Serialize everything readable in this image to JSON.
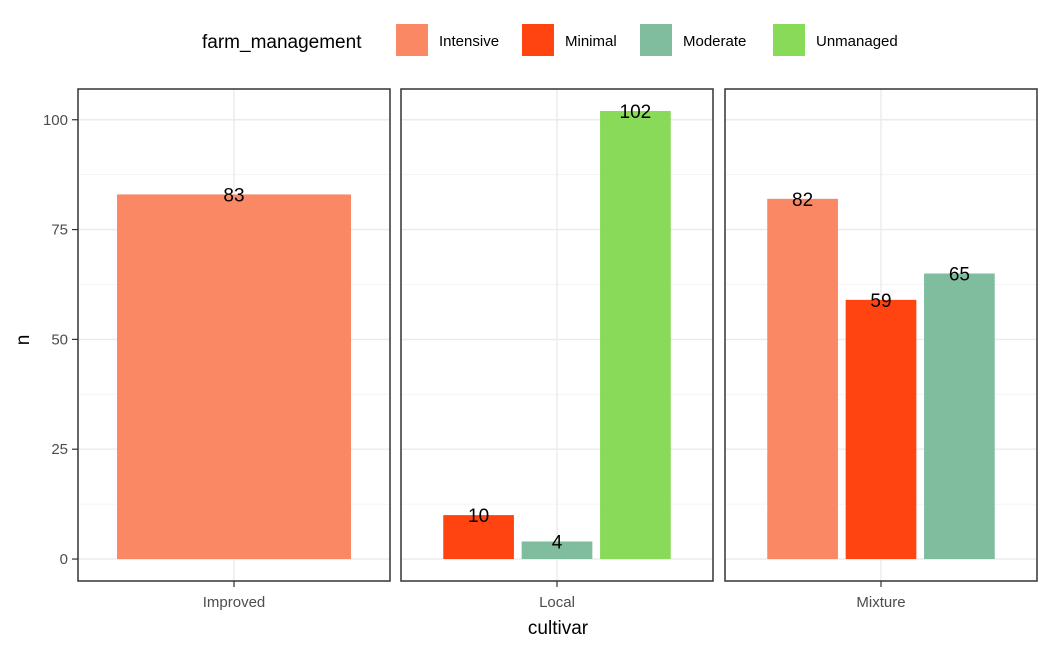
{
  "chart_data": {
    "type": "bar",
    "xlabel": "cultivar",
    "ylabel": "n",
    "ylim": [
      -5,
      107
    ],
    "y_ticks": [
      0,
      25,
      50,
      75,
      100
    ],
    "grid": true,
    "legend": {
      "title": "farm_management",
      "position": "top",
      "entries": [
        {
          "name": "Intensive",
          "color": "#FA8865"
        },
        {
          "name": "Minimal",
          "color": "#FF4411"
        },
        {
          "name": "Moderate",
          "color": "#80BD9E"
        },
        {
          "name": "Unmanaged",
          "color": "#89DA59"
        }
      ]
    },
    "facets": [
      {
        "category": "Improved",
        "bars": [
          {
            "series": "Intensive",
            "value": 83
          }
        ]
      },
      {
        "category": "Local",
        "bars": [
          {
            "series": "Minimal",
            "value": 10
          },
          {
            "series": "Moderate",
            "value": 4
          },
          {
            "series": "Unmanaged",
            "value": 102
          }
        ]
      },
      {
        "category": "Mixture",
        "bars": [
          {
            "series": "Intensive",
            "value": 82
          },
          {
            "series": "Minimal",
            "value": 59
          },
          {
            "series": "Moderate",
            "value": 65
          }
        ]
      }
    ]
  }
}
